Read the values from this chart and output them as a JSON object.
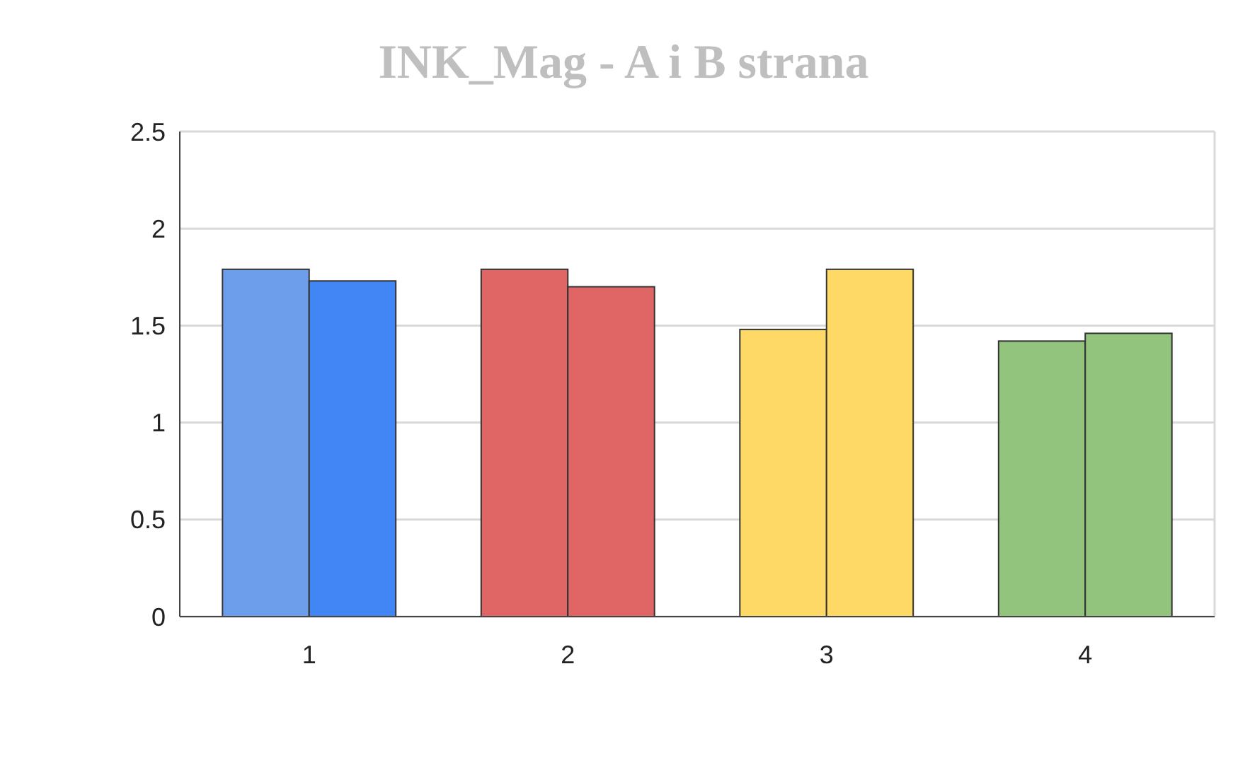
{
  "chart_data": {
    "type": "bar",
    "title": "INK_Mag - A i B strana",
    "categories": [
      "1",
      "2",
      "3",
      "4"
    ],
    "series": [
      {
        "colors": [
          "#6d9eeb",
          "#e06666",
          "#ffd966",
          "#93c47d"
        ],
        "values": [
          1.79,
          1.79,
          1.48,
          1.42
        ]
      },
      {
        "colors": [
          "#4285f4",
          "#e06666",
          "#ffd966",
          "#93c47d"
        ],
        "values": [
          1.73,
          1.7,
          1.79,
          1.46
        ]
      }
    ],
    "ylim": [
      0,
      2.5
    ],
    "yticks": [
      0,
      0.5,
      1,
      1.5,
      2,
      2.5
    ],
    "grid": "y"
  }
}
